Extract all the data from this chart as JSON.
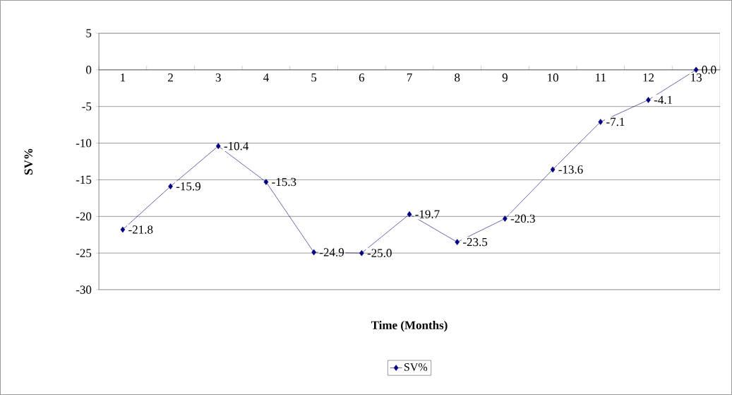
{
  "chart_data": {
    "type": "line",
    "xlabel": "Time (Months)",
    "ylabel": "SV%",
    "categories": [
      "1",
      "2",
      "3",
      "4",
      "5",
      "6",
      "7",
      "8",
      "9",
      "10",
      "11",
      "12",
      "13"
    ],
    "series": [
      {
        "name": "SV%",
        "color": "#000080",
        "values": [
          -21.8,
          -15.9,
          -10.4,
          -15.3,
          -24.9,
          -25.0,
          -19.7,
          -23.5,
          -20.3,
          -13.6,
          -7.1,
          -4.1,
          0.0
        ],
        "value_labels": [
          "-21.8",
          "-15.9",
          "-10.4",
          "-15.3",
          "-24.9",
          "-25.0",
          "-19.7",
          "-23.5",
          "-20.3",
          "-13.6",
          "-7.1",
          "-4.1",
          "0.0"
        ]
      }
    ],
    "ylim": [
      -30,
      5
    ],
    "yticks": [
      5,
      0,
      -5,
      -10,
      -15,
      -20,
      -25,
      -30
    ],
    "grid": "y",
    "legend": "bottom",
    "marker": "diamond",
    "line_style": "solid"
  }
}
